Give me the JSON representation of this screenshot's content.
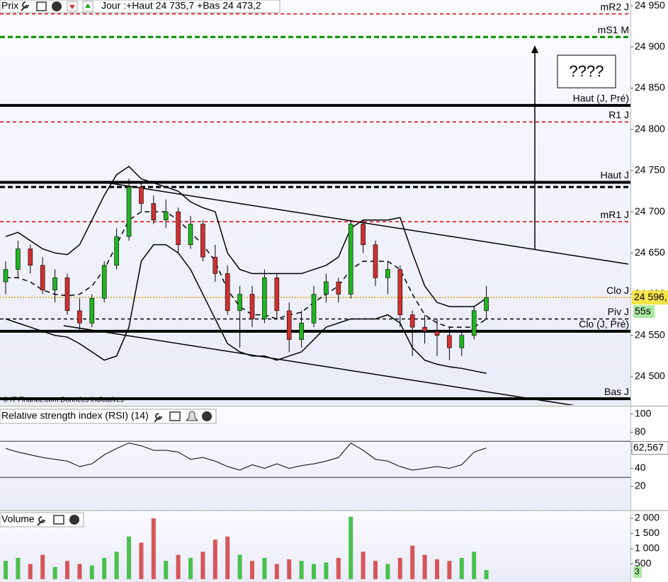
{
  "header": {
    "title": "Prix",
    "info": "Jour :+Haut 24 735,7 +Bas 24 473,2",
    "source": "© IT-Finance.com  Données indicatives",
    "note": "????"
  },
  "chart_data": [
    {
      "type": "candlestick",
      "up_color": "#22b422",
      "down_color": "#d03030",
      "open": [
        24615,
        24630,
        24655,
        24635,
        24605,
        24620,
        24580,
        24565,
        24595,
        24635,
        24670,
        24730,
        24710,
        24690,
        24700,
        24660,
        24685,
        24645,
        24625,
        24580,
        24600,
        24570,
        24620,
        24580,
        24545,
        24565,
        24600,
        24615,
        24600,
        24685,
        24660,
        24620,
        24630,
        24575,
        24560,
        24555,
        24550,
        24535,
        24550,
        24580
      ],
      "high": [
        24640,
        24665,
        24660,
        24645,
        24630,
        24625,
        24595,
        24600,
        24640,
        24680,
        24740,
        24735,
        24720,
        24715,
        24705,
        24695,
        24690,
        24660,
        24635,
        24610,
        24610,
        24630,
        24625,
        24590,
        24580,
        24610,
        24625,
        24620,
        24690,
        24690,
        24665,
        24640,
        24635,
        24580,
        24575,
        24570,
        24560,
        24555,
        24585,
        24610
      ],
      "low": [
        24600,
        24620,
        24625,
        24600,
        24590,
        24575,
        24555,
        24560,
        24590,
        24630,
        24665,
        24700,
        24685,
        24680,
        24650,
        24655,
        24640,
        24615,
        24575,
        24535,
        24560,
        24565,
        24570,
        24530,
        24535,
        24560,
        24590,
        24590,
        24595,
        24650,
        24610,
        24600,
        24560,
        24525,
        24540,
        24525,
        24520,
        24525,
        24545,
        24570
      ],
      "close": [
        24630,
        24655,
        24635,
        24605,
        24620,
        24580,
        24565,
        24595,
        24635,
        24670,
        24730,
        24710,
        24690,
        24700,
        24660,
        24685,
        24645,
        24625,
        24580,
        24600,
        24570,
        24620,
        24580,
        24545,
        24565,
        24600,
        24615,
        24600,
        24685,
        24660,
        24620,
        24630,
        24575,
        24560,
        24555,
        24550,
        24535,
        24550,
        24580,
        24596
      ],
      "bands": {
        "upper": [
          24670,
          24675,
          24665,
          24655,
          24650,
          24648,
          24660,
          24690,
          24720,
          24745,
          24755,
          24740,
          24735,
          24730,
          24725,
          24712,
          24705,
          24700,
          24650,
          24630,
          24625,
          24625,
          24625,
          24625,
          24625,
          24630,
          24635,
          24645,
          24680,
          24690,
          24690,
          24690,
          24693,
          24650,
          24610,
          24590,
          24585,
          24585,
          24585,
          24595
        ],
        "middle": [
          24620,
          24620,
          24615,
          24605,
          24600,
          24598,
          24600,
          24610,
          24630,
          24660,
          24690,
          24700,
          24700,
          24700,
          24690,
          24675,
          24660,
          24640,
          24605,
          24585,
          24575,
          24575,
          24570,
          24575,
          24578,
          24590,
          24600,
          24610,
          24630,
          24640,
          24640,
          24640,
          24630,
          24600,
          24575,
          24565,
          24560,
          24560,
          24560,
          24570
        ],
        "lower": [
          24570,
          24565,
          24560,
          24555,
          24550,
          24548,
          24540,
          24530,
          24520,
          24525,
          24560,
          24640,
          24660,
          24660,
          24650,
          24630,
          24600,
          24570,
          24540,
          24530,
          24525,
          24525,
          24520,
          24525,
          24530,
          24545,
          24560,
          24565,
          24570,
          24570,
          24570,
          24575,
          24565,
          24535,
          24520,
          24515,
          24512,
          24510,
          24507,
          24504
        ]
      },
      "levels": [
        {
          "name": "mR2 J",
          "value": 24940,
          "color": "#e00000",
          "style": "dashed"
        },
        {
          "name": "mS1 M",
          "value": 24912,
          "color": "#009000",
          "style": "bold-dashed"
        },
        {
          "name": "Haut (J, Pré)",
          "value": 24829,
          "color": "#000000",
          "style": "thick"
        },
        {
          "name": "R1 J",
          "value": 24809,
          "color": "#e00000",
          "style": "dashed"
        },
        {
          "name": "Haut J",
          "value": 24735.7,
          "color": "#000000",
          "style": "thick"
        },
        {
          "value": 24730,
          "color": "#000000",
          "style": "bold-dashed"
        },
        {
          "name": "mR1 J",
          "value": 24688,
          "color": "#e00000",
          "style": "dashed"
        },
        {
          "name": "Clo J",
          "value": 24596,
          "color": "#e0a000",
          "style": "dotted"
        },
        {
          "name": "Piv J",
          "value": 24570,
          "color": "#000000",
          "style": "dashed"
        },
        {
          "name": "Clo (J, Pré)",
          "value": 24555,
          "color": "#000000",
          "style": "thick"
        },
        {
          "name": "Bas J",
          "value": 24473.2,
          "color": "#000000",
          "style": "thick"
        }
      ],
      "ylim": [
        24465.6,
        24956.9
      ],
      "yticks": [
        {
          "value": 24500,
          "label": "24 500"
        },
        {
          "value": 24550,
          "label": "24 550"
        },
        {
          "value": 24600,
          "label": "24 600"
        },
        {
          "value": 24650,
          "label": "24 650"
        },
        {
          "value": 24700,
          "label": "24 700"
        },
        {
          "value": 24750,
          "label": "24 750"
        },
        {
          "value": 24800,
          "label": "24 800"
        },
        {
          "value": 24850,
          "label": "24 850"
        },
        {
          "value": 24900,
          "label": "24 900"
        },
        {
          "value": 24950,
          "label": "24 950"
        }
      ],
      "last": {
        "value": 24596,
        "label": "24 596,"
      },
      "timer": "55s"
    },
    {
      "type": "line",
      "title": "Relative strength index (RSI) (14)",
      "color": "#000000",
      "values": [
        62,
        58,
        55,
        52,
        50,
        48,
        42,
        45,
        55,
        62,
        68,
        65,
        60,
        60,
        58,
        50,
        52,
        48,
        42,
        38,
        44,
        40,
        45,
        40,
        43,
        45,
        48,
        52,
        68,
        60,
        50,
        48,
        42,
        38,
        40,
        42,
        40,
        44,
        58,
        62.567
      ],
      "ylim": [
        -5.9,
        107.8
      ],
      "yticks": [
        20,
        40,
        60,
        80,
        100
      ],
      "levels": [
        30,
        70
      ],
      "last": {
        "value": 62.567,
        "label": "62,567"
      }
    },
    {
      "type": "bar",
      "title": "Volume",
      "values": [
        600,
        700,
        500,
        800,
        400,
        600,
        500,
        450,
        700,
        900,
        1400,
        1200,
        2000,
        600,
        800,
        700,
        900,
        1300,
        1400,
        800,
        600,
        700,
        500,
        650,
        600,
        500,
        550,
        700,
        2050,
        900,
        600,
        500,
        700,
        1100,
        800,
        650,
        600,
        700,
        900,
        300
      ],
      "ylim": [
        -93,
        2233
      ],
      "yticks": [
        500,
        {
          "value": 1000,
          "label": "1 000"
        },
        {
          "value": 1500,
          "label": "1 500"
        },
        {
          "value": 2000,
          "label": "2 000"
        }
      ],
      "counter": "3"
    }
  ]
}
